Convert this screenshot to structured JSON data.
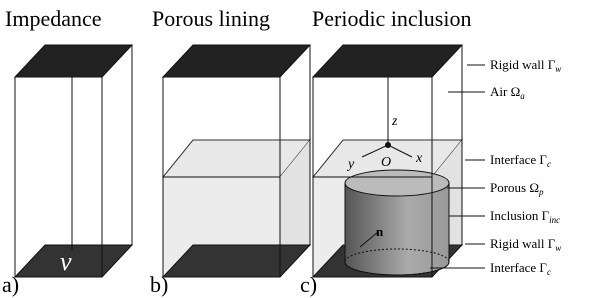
{
  "panels": [
    {
      "title": "Impedance",
      "tag": "a)",
      "symbol": "ν"
    },
    {
      "title": "Porous lining",
      "tag": "b)"
    },
    {
      "title": "Periodic inclusion",
      "tag": "c)"
    }
  ],
  "axes": {
    "z": "z",
    "x": "x",
    "y": "y",
    "origin": "O",
    "normal": "n"
  },
  "labels": [
    {
      "text": "Rigid wall Γ",
      "sub": "w"
    },
    {
      "text": "Air Ω",
      "sub": "a"
    },
    {
      "text": "Interface Γ",
      "sub": "c"
    },
    {
      "text": "Porous Ω",
      "sub": "p"
    },
    {
      "text": "Inclusion Γ",
      "sub": "inc"
    },
    {
      "text": "Rigid wall Γ",
      "sub": "w"
    },
    {
      "text": "Interface Γ",
      "sub": "c"
    }
  ]
}
